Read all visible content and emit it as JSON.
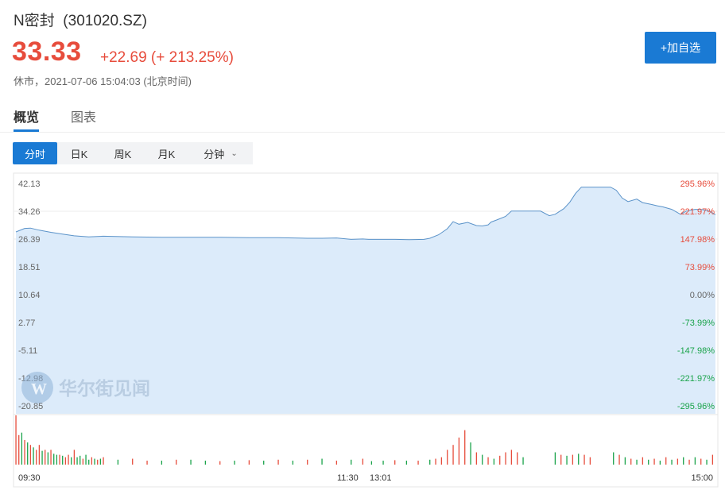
{
  "stock": {
    "name": "N密封",
    "code": "(301020.SZ)",
    "price": "33.33",
    "change": "+22.69 (+ 213.25%)",
    "status": "休市，2021-07-06 15:04:03 (北京时间)"
  },
  "actions": {
    "add_watchlist": "+加自选"
  },
  "tabs": [
    {
      "label": "概览",
      "active": true
    },
    {
      "label": "图表",
      "active": false
    }
  ],
  "periods": [
    {
      "label": "分时",
      "active": true
    },
    {
      "label": "日K",
      "active": false
    },
    {
      "label": "周K",
      "active": false
    },
    {
      "label": "月K",
      "active": false
    },
    {
      "label": "分钟",
      "active": false
    }
  ],
  "watermark": "华尔街见闻",
  "colors": {
    "up": "#e74c3c",
    "down": "#1aa34a",
    "accent": "#1a7ad4",
    "line": "#5b93c9",
    "fill": "#dcebfa"
  },
  "chart_data": {
    "type": "area",
    "y_ticks_left": [
      "42.13",
      "34.26",
      "26.39",
      "18.51",
      "10.64",
      "2.77",
      "-5.11",
      "-12.98",
      "-20.85"
    ],
    "y_ticks_right": [
      "295.96%",
      "221.97%",
      "147.98%",
      "73.99%",
      "0.00%",
      "-73.99%",
      "-147.98%",
      "-221.97%",
      "-295.96%"
    ],
    "x_ticks": [
      "09:30",
      "11:30",
      "13:01",
      "15:00"
    ],
    "ylim": [
      -20.85,
      42.13
    ],
    "reference_price": 10.64,
    "grid": true,
    "price": {
      "x": [
        0,
        3,
        5,
        8,
        12,
        16,
        20,
        25,
        30,
        40,
        50,
        60,
        70,
        80,
        90,
        100,
        105,
        110,
        115,
        119,
        121,
        125,
        130,
        135,
        140,
        142,
        145,
        148,
        150,
        152,
        155,
        158,
        160,
        162,
        163,
        165,
        168,
        170,
        172,
        174,
        176,
        178,
        180,
        183,
        185,
        188,
        190,
        192,
        194,
        196,
        198,
        200,
        202,
        204,
        206,
        208,
        210,
        213,
        215,
        218,
        220,
        222,
        225,
        228,
        230,
        233,
        235,
        238,
        240
      ],
      "y": [
        28.4,
        29.4,
        29.5,
        28.9,
        28.3,
        27.8,
        27.3,
        27.0,
        27.2,
        27.0,
        26.9,
        26.9,
        26.9,
        26.8,
        26.8,
        26.6,
        26.6,
        26.7,
        26.3,
        26.4,
        26.3,
        26.3,
        26.3,
        26.2,
        26.3,
        26.6,
        27.6,
        29.3,
        31.3,
        30.6,
        31.1,
        30.2,
        30.1,
        30.4,
        31.2,
        31.8,
        32.8,
        34.3,
        34.3,
        34.3,
        34.3,
        34.3,
        34.3,
        33.0,
        33.4,
        35.0,
        36.8,
        39.3,
        41.1,
        41.1,
        41.1,
        41.1,
        41.1,
        41.1,
        40.2,
        38.0,
        37.0,
        37.7,
        36.7,
        36.2,
        35.8,
        35.5,
        34.8,
        33.4,
        34.3,
        34.8,
        34.8,
        34.3,
        33.3
      ]
    },
    "volume": {
      "x": [
        0,
        1,
        2,
        3,
        4,
        5,
        6,
        7,
        8,
        9,
        10,
        11,
        12,
        13,
        14,
        15,
        16,
        17,
        18,
        19,
        20,
        21,
        22,
        23,
        24,
        25,
        26,
        27,
        28,
        29,
        30,
        35,
        40,
        45,
        50,
        55,
        60,
        65,
        70,
        75,
        80,
        85,
        90,
        95,
        100,
        105,
        110,
        115,
        119,
        122,
        126,
        130,
        134,
        138,
        142,
        144,
        146,
        148,
        150,
        152,
        154,
        156,
        158,
        160,
        162,
        164,
        166,
        168,
        170,
        172,
        174,
        185,
        187,
        189,
        191,
        193,
        195,
        197,
        205,
        207,
        209,
        211,
        213,
        215,
        217,
        219,
        221,
        223,
        225,
        227,
        229,
        231,
        233,
        235,
        237,
        239
      ],
      "v": [
        1.0,
        0.6,
        0.65,
        0.5,
        0.45,
        0.4,
        0.35,
        0.3,
        0.4,
        0.28,
        0.3,
        0.25,
        0.3,
        0.22,
        0.2,
        0.2,
        0.18,
        0.15,
        0.2,
        0.15,
        0.3,
        0.15,
        0.18,
        0.12,
        0.2,
        0.1,
        0.15,
        0.12,
        0.1,
        0.12,
        0.15,
        0.1,
        0.12,
        0.08,
        0.08,
        0.1,
        0.1,
        0.08,
        0.07,
        0.08,
        0.09,
        0.08,
        0.1,
        0.08,
        0.1,
        0.12,
        0.08,
        0.1,
        0.12,
        0.07,
        0.08,
        0.09,
        0.08,
        0.08,
        0.1,
        0.12,
        0.15,
        0.3,
        0.4,
        0.55,
        0.7,
        0.45,
        0.25,
        0.2,
        0.15,
        0.12,
        0.18,
        0.25,
        0.3,
        0.25,
        0.15,
        0.25,
        0.2,
        0.18,
        0.2,
        0.22,
        0.2,
        0.15,
        0.25,
        0.2,
        0.15,
        0.12,
        0.1,
        0.15,
        0.1,
        0.12,
        0.08,
        0.15,
        0.1,
        0.12,
        0.15,
        0.1,
        0.15,
        0.12,
        0.1,
        0.2
      ],
      "up": [
        1,
        1,
        0,
        1,
        0,
        1,
        0,
        1,
        1,
        0,
        1,
        0,
        1,
        0,
        0,
        1,
        0,
        1,
        1,
        0,
        1,
        0,
        0,
        1,
        0,
        0,
        1,
        0,
        1,
        0,
        1,
        0,
        1,
        1,
        0,
        1,
        0,
        0,
        1,
        0,
        1,
        0,
        1,
        0,
        1,
        0,
        1,
        0,
        1,
        0,
        0,
        1,
        0,
        1,
        0,
        1,
        1,
        1,
        1,
        1,
        1,
        0,
        1,
        0,
        1,
        0,
        1,
        1,
        1,
        1,
        0,
        0,
        1,
        0,
        1,
        0,
        1,
        1,
        0,
        1,
        0,
        1,
        0,
        1,
        0,
        1,
        0,
        1,
        0,
        1,
        0,
        1,
        0,
        1,
        0,
        1
      ]
    }
  }
}
